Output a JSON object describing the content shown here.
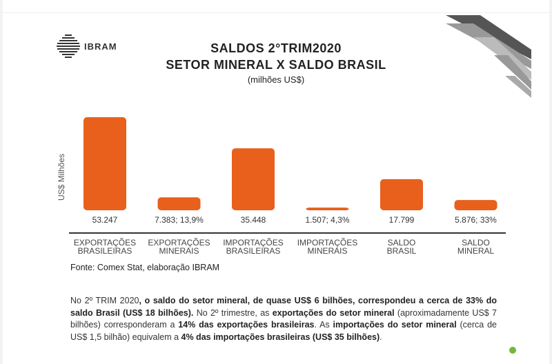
{
  "header": {
    "logo_text": "IBRAM",
    "title_line1": "SALDOS 2°TRIM2020",
    "title_line2": "SETOR MINERAL X SALDO BRASIL",
    "subtitle": "(milhões US$)"
  },
  "chart_data": {
    "type": "bar",
    "ylabel": "US$ Milhões",
    "bar_color": "#e8601c",
    "ylim": [
      0,
      56000
    ],
    "grid": false,
    "categories": [
      [
        "EXPORTAÇÕES",
        "BRASILEIRAS"
      ],
      [
        "EXPORTAÇÕES",
        "MINERAIS"
      ],
      [
        "IMPORTAÇÕES",
        "BRASILEIRAS"
      ],
      [
        "IMPORTAÇÕES",
        "MINERAIS"
      ],
      [
        "SALDO",
        "BRASIL"
      ],
      [
        "SALDO",
        "MINERAL"
      ]
    ],
    "values": [
      53247,
      7383,
      35448,
      1507,
      17799,
      5876
    ],
    "data_labels": [
      "53.247",
      "7.383; 13,9%",
      "35.448",
      "1.507; 4,3%",
      "17.799",
      "5.876; 33%"
    ]
  },
  "source": "Fonte: Comex Stat, elaboração IBRAM",
  "paragraph": {
    "s1": "No 2º TRIM 2020",
    "s2": ", o saldo do setor mineral, de quase US$ 6 bilhões, correspondeu a cerca de 33% do saldo Brasil (US$ 18 bilhões).",
    "s3": " No 2º trimestre, as ",
    "s4": "exportações do setor mineral",
    "s5": " (aproximadamente US$ 7 bilhões) corresponderam a ",
    "s6": "14% das exportações brasileiras",
    "s7": ". As ",
    "s8": "importações do setor mineral",
    "s9": " (cerca de US$ 1,5 bilhão) equivalem a ",
    "s10": "4% das importações brasileiras (US$ 35 bilhões)",
    "s11": "."
  }
}
